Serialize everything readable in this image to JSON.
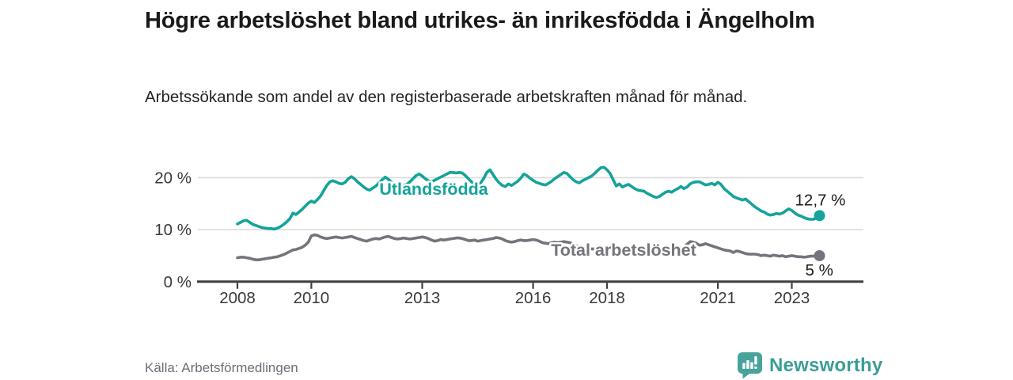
{
  "header": {
    "title": "Högre arbetslöshet bland utrikes- än inrikesfödda i Ängelholm",
    "subtitle": "Arbetssökande som andel av den registerbaserade arbetskraften månad för månad."
  },
  "footer": {
    "source": "Källa: Arbetsförmedlingen",
    "brand_name": "Newsworthy",
    "brand_icon": "speech-bubble-bar-chart-exclamation-icon"
  },
  "colors": {
    "foreign_born_line": "#15A39A",
    "total_line": "#74747C",
    "axis": "#3F3F3F",
    "gridline": "#DBDBDB",
    "tick_label": "#3A3A3A",
    "end_label_text": "#1a1a1a",
    "brand_teal": "#3A9D96",
    "source_text": "#6e6e78"
  },
  "chart_data": {
    "type": "line",
    "title": "Högre arbetslöshet bland utrikes- än inrikesfödda i Ängelholm",
    "subtitle": "Arbetssökande som andel av den registerbaserade arbetskraften månad för månad.",
    "unit": "%",
    "frequency": "monthly",
    "x_range": [
      2008.0,
      2023.75
    ],
    "ylim": [
      0,
      24
    ],
    "grid": "horizontal",
    "legend_position": "inline-labels",
    "yticks": [
      {
        "value": 0,
        "label": "0 %"
      },
      {
        "value": 10,
        "label": "10 %"
      },
      {
        "value": 20,
        "label": "20 %"
      }
    ],
    "xticks": [
      {
        "value": 2008,
        "label": "2008"
      },
      {
        "value": 2010,
        "label": "2010"
      },
      {
        "value": 2013,
        "label": "2013"
      },
      {
        "value": 2016,
        "label": "2016"
      },
      {
        "value": 2018,
        "label": "2018"
      },
      {
        "value": 2021,
        "label": "2021"
      },
      {
        "value": 2023,
        "label": "2023"
      }
    ],
    "series": [
      {
        "name": "Total arbetslöshet",
        "color": "#74747C",
        "end_label": "5 %",
        "end_value": 5.0,
        "values": [
          4.6,
          4.7,
          4.7,
          4.6,
          4.5,
          4.3,
          4.2,
          4.2,
          4.3,
          4.4,
          4.5,
          4.6,
          4.7,
          4.8,
          5.0,
          5.2,
          5.5,
          5.8,
          6.1,
          6.2,
          6.4,
          6.6,
          7.0,
          7.6,
          8.8,
          9.0,
          8.9,
          8.6,
          8.4,
          8.3,
          8.4,
          8.5,
          8.6,
          8.5,
          8.4,
          8.5,
          8.6,
          8.7,
          8.5,
          8.3,
          8.1,
          7.9,
          7.8,
          8.0,
          8.2,
          8.3,
          8.2,
          8.4,
          8.6,
          8.7,
          8.5,
          8.3,
          8.2,
          8.3,
          8.4,
          8.3,
          8.2,
          8.3,
          8.4,
          8.5,
          8.6,
          8.5,
          8.3,
          8.0,
          7.8,
          7.9,
          8.1,
          8.0,
          8.1,
          8.2,
          8.3,
          8.4,
          8.4,
          8.3,
          8.1,
          7.9,
          7.9,
          8.0,
          7.8,
          7.9,
          8.0,
          8.1,
          8.2,
          8.3,
          8.5,
          8.4,
          8.2,
          7.9,
          7.7,
          7.6,
          7.7,
          7.9,
          8.0,
          7.9,
          7.9,
          8.0,
          8.1,
          8.0,
          7.8,
          7.5,
          7.4,
          7.3,
          7.5,
          7.6,
          7.5,
          7.6,
          7.7,
          7.6,
          7.5,
          7.2,
          6.9,
          6.7,
          6.5,
          6.4,
          6.4,
          6.3,
          6.3,
          6.2,
          6.2,
          6.3,
          6.3,
          6.2,
          6.0,
          5.9,
          5.8,
          5.9,
          5.9,
          6.0,
          5.9,
          5.9,
          6.0,
          6.1,
          6.1,
          6.0,
          5.9,
          5.9,
          6.0,
          6.1,
          6.2,
          6.2,
          6.1,
          6.2,
          6.3,
          6.4,
          6.5,
          6.6,
          7.2,
          7.7,
          7.6,
          7.4,
          7.0,
          7.1,
          7.3,
          7.1,
          6.9,
          6.7,
          6.5,
          6.3,
          6.1,
          6.0,
          5.9,
          5.6,
          5.9,
          5.8,
          5.6,
          5.4,
          5.3,
          5.3,
          5.3,
          5.2,
          5.0,
          5.1,
          5.0,
          4.9,
          5.1,
          5.0,
          4.9,
          5.0,
          4.8,
          4.9,
          5.0,
          4.9,
          4.8,
          4.8,
          4.7,
          4.8,
          4.9,
          4.9,
          5.0,
          5.0
        ]
      },
      {
        "name": "Utlandsfödda",
        "color": "#15A39A",
        "end_label": "12,7 %",
        "end_value": 12.7,
        "values": [
          11.1,
          11.4,
          11.7,
          11.8,
          11.4,
          11.0,
          10.8,
          10.6,
          10.4,
          10.3,
          10.2,
          10.2,
          10.1,
          10.3,
          10.6,
          11.0,
          11.5,
          12.1,
          13.2,
          12.9,
          13.4,
          13.9,
          14.5,
          15.1,
          15.5,
          15.2,
          15.8,
          16.5,
          17.5,
          18.5,
          19.2,
          19.4,
          19.2,
          18.9,
          18.8,
          19.1,
          19.8,
          20.2,
          19.8,
          19.2,
          18.7,
          18.2,
          17.8,
          17.6,
          18.0,
          18.4,
          19.0,
          19.6,
          20.1,
          19.7,
          19.1,
          18.5,
          18.2,
          18.3,
          18.5,
          18.7,
          19.2,
          19.8,
          20.4,
          20.7,
          20.3,
          19.8,
          19.4,
          19.2,
          19.5,
          19.8,
          20.1,
          20.4,
          20.7,
          21.0,
          21.0,
          20.9,
          21.0,
          20.9,
          20.4,
          19.8,
          19.2,
          18.7,
          18.4,
          19.0,
          19.9,
          21.0,
          21.5,
          20.6,
          19.7,
          19.0,
          18.5,
          18.3,
          18.8,
          18.5,
          18.9,
          19.3,
          19.9,
          20.7,
          20.4,
          19.9,
          19.5,
          19.1,
          18.9,
          18.7,
          18.6,
          18.9,
          19.3,
          19.8,
          20.2,
          20.6,
          21.0,
          20.8,
          20.2,
          19.6,
          19.2,
          19.0,
          19.4,
          19.7,
          20.0,
          20.3,
          20.8,
          21.4,
          21.9,
          22.0,
          21.5,
          20.8,
          19.6,
          18.4,
          18.8,
          18.2,
          18.5,
          18.7,
          18.3,
          17.9,
          17.6,
          17.5,
          17.4,
          17.0,
          16.7,
          16.4,
          16.2,
          16.4,
          16.8,
          17.2,
          17.4,
          17.2,
          17.6,
          17.9,
          18.3,
          17.9,
          18.2,
          18.8,
          19.1,
          19.2,
          19.2,
          18.9,
          18.6,
          18.7,
          18.9,
          18.6,
          19.1,
          18.7,
          17.9,
          17.4,
          16.9,
          16.4,
          16.1,
          15.9,
          15.7,
          15.9,
          15.4,
          14.9,
          14.4,
          14.0,
          13.6,
          13.4,
          13.0,
          12.8,
          12.9,
          13.1,
          13.0,
          13.2,
          13.6,
          14.0,
          13.7,
          13.2,
          12.8,
          12.6,
          12.3,
          12.1,
          12.0,
          12.0,
          12.2,
          12.7
        ]
      }
    ]
  }
}
